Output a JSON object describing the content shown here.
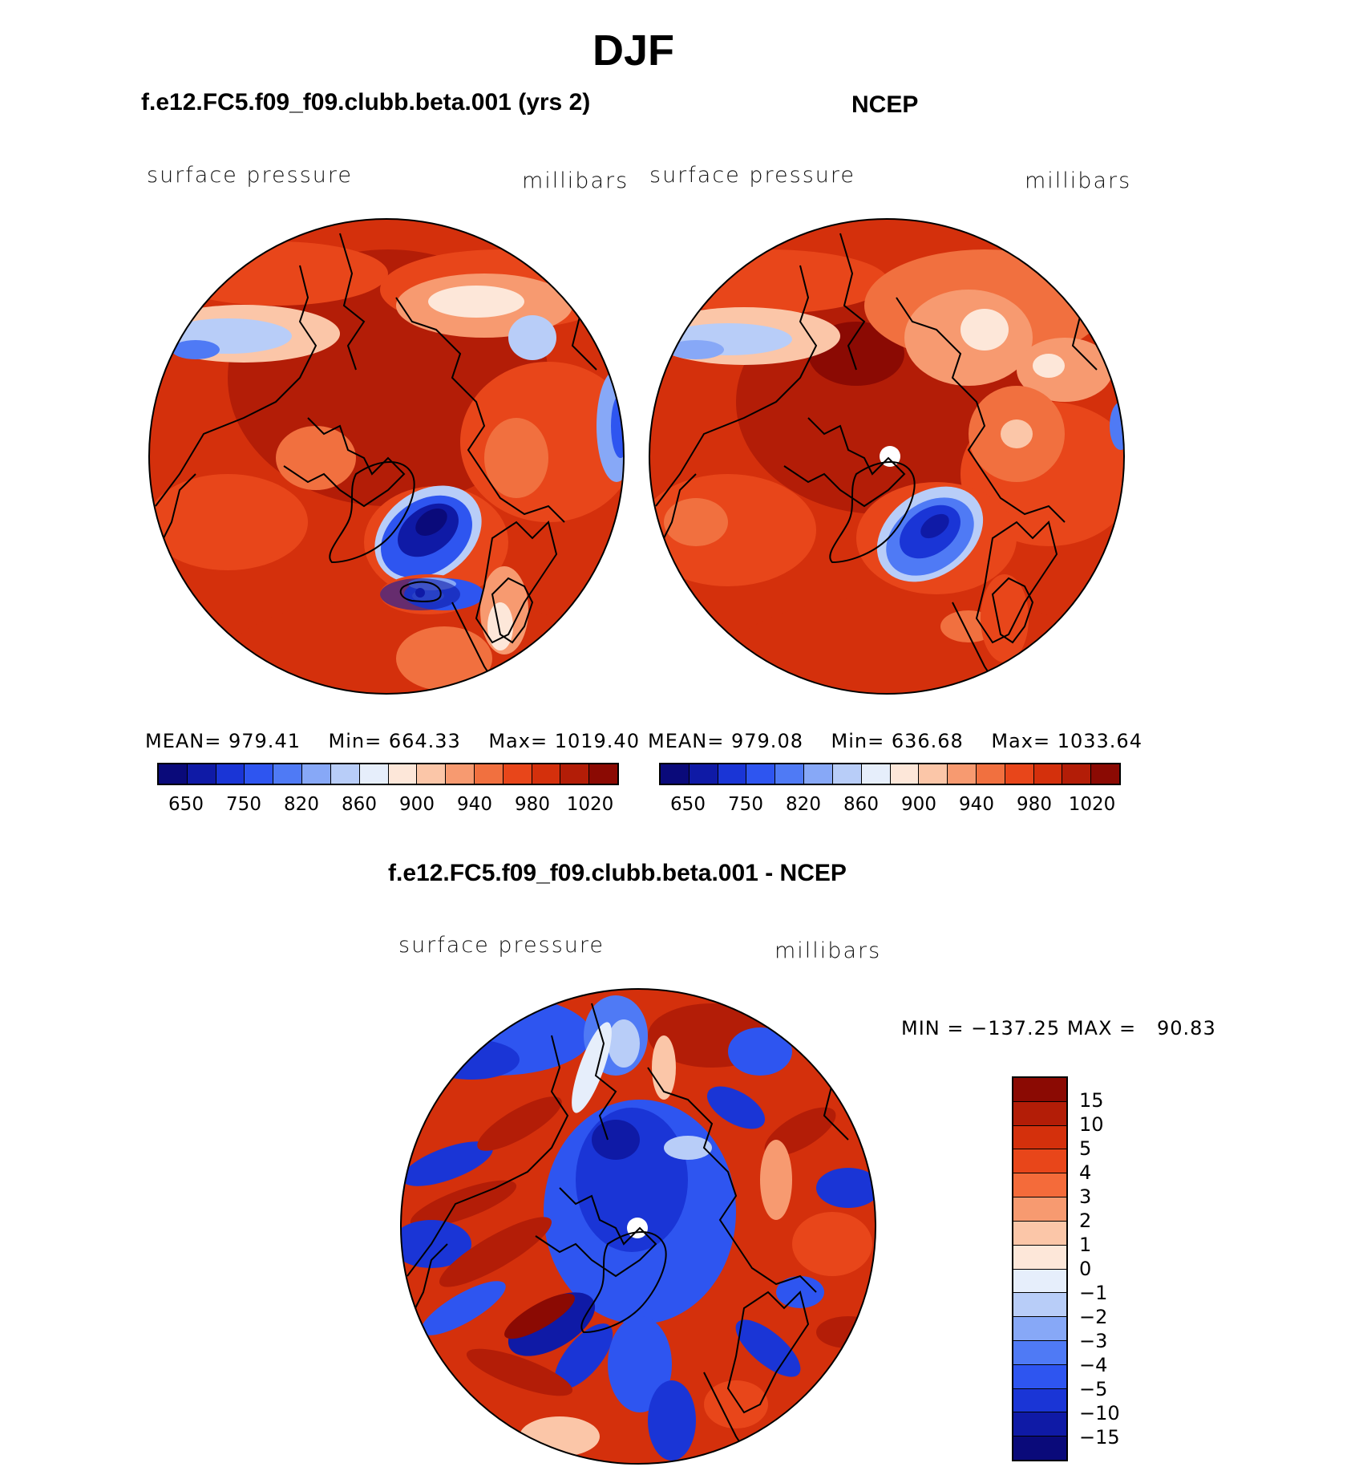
{
  "figure": {
    "season_title": "DJF"
  },
  "panels": [
    {
      "title": "f.e12.FC5.f09_f09.clubb.beta.001 (yrs 2)",
      "variable": "surface pressure",
      "units": "millibars",
      "stats": {
        "mean_label": "MEAN=",
        "mean": "979.41",
        "min_label": "Min=",
        "min": "664.33",
        "max_label": "Max=",
        "max": "1019.40"
      }
    },
    {
      "title": "NCEP",
      "variable": "surface pressure",
      "units": "millibars",
      "stats": {
        "mean_label": "MEAN=",
        "mean": "979.08",
        "min_label": "Min=",
        "min": "636.68",
        "max_label": "Max=",
        "max": "1033.64"
      }
    }
  ],
  "diff_panel": {
    "title": "f.e12.FC5.f09_f09.clubb.beta.001 - NCEP",
    "variable": "surface pressure",
    "units": "millibars",
    "minmax_text": "MIN = −137.25 MAX =   90.83"
  },
  "chart_data": [
    {
      "type": "heatmap",
      "projection": "north polar stereographic",
      "title": "f.e12.FC5.f09_f09.clubb.beta.001 (yrs 2)",
      "field": "surface pressure",
      "units": "millibars",
      "mean": 979.41,
      "min": 664.33,
      "max": 1019.4,
      "levels_shown": [
        "650",
        "750",
        "820",
        "860",
        "900",
        "940",
        "980",
        "1020"
      ]
    },
    {
      "type": "heatmap",
      "projection": "north polar stereographic",
      "title": "NCEP",
      "field": "surface pressure",
      "units": "millibars",
      "mean": 979.08,
      "min": 636.68,
      "max": 1033.64,
      "levels_shown": [
        "650",
        "750",
        "820",
        "860",
        "900",
        "940",
        "980",
        "1020"
      ]
    },
    {
      "type": "heatmap",
      "projection": "north polar stereographic",
      "title": "f.e12.FC5.f09_f09.clubb.beta.001 - NCEP",
      "field": "surface pressure",
      "units": "millibars",
      "min": -137.25,
      "max": 90.83,
      "levels": [
        "15",
        "10",
        "5",
        "4",
        "3",
        "2",
        "1",
        "0",
        "−1",
        "−2",
        "−3",
        "−4",
        "−5",
        "−10",
        "−15"
      ]
    }
  ],
  "colorbars": {
    "abs_colors": [
      "#0a0a7a",
      "#0f1aa6",
      "#1a35d6",
      "#2e55f0",
      "#4f7af5",
      "#87a8f7",
      "#b8cdf8",
      "#e6eefb",
      "#fde7d9",
      "#fbc6a8",
      "#f79a70",
      "#f1703f",
      "#e8461a",
      "#d4300c",
      "#b31d07",
      "#8b0a03"
    ],
    "diff_colors": [
      "#8b0a03",
      "#b31d07",
      "#d4300c",
      "#e8461a",
      "#f46b3a",
      "#f79a70",
      "#fbc6a8",
      "#fde7d9",
      "#e6eefb",
      "#b8cdf8",
      "#87a8f7",
      "#4f7af5",
      "#2e55f0",
      "#1a35d6",
      "#0f1aa6",
      "#0a0a7a"
    ]
  }
}
